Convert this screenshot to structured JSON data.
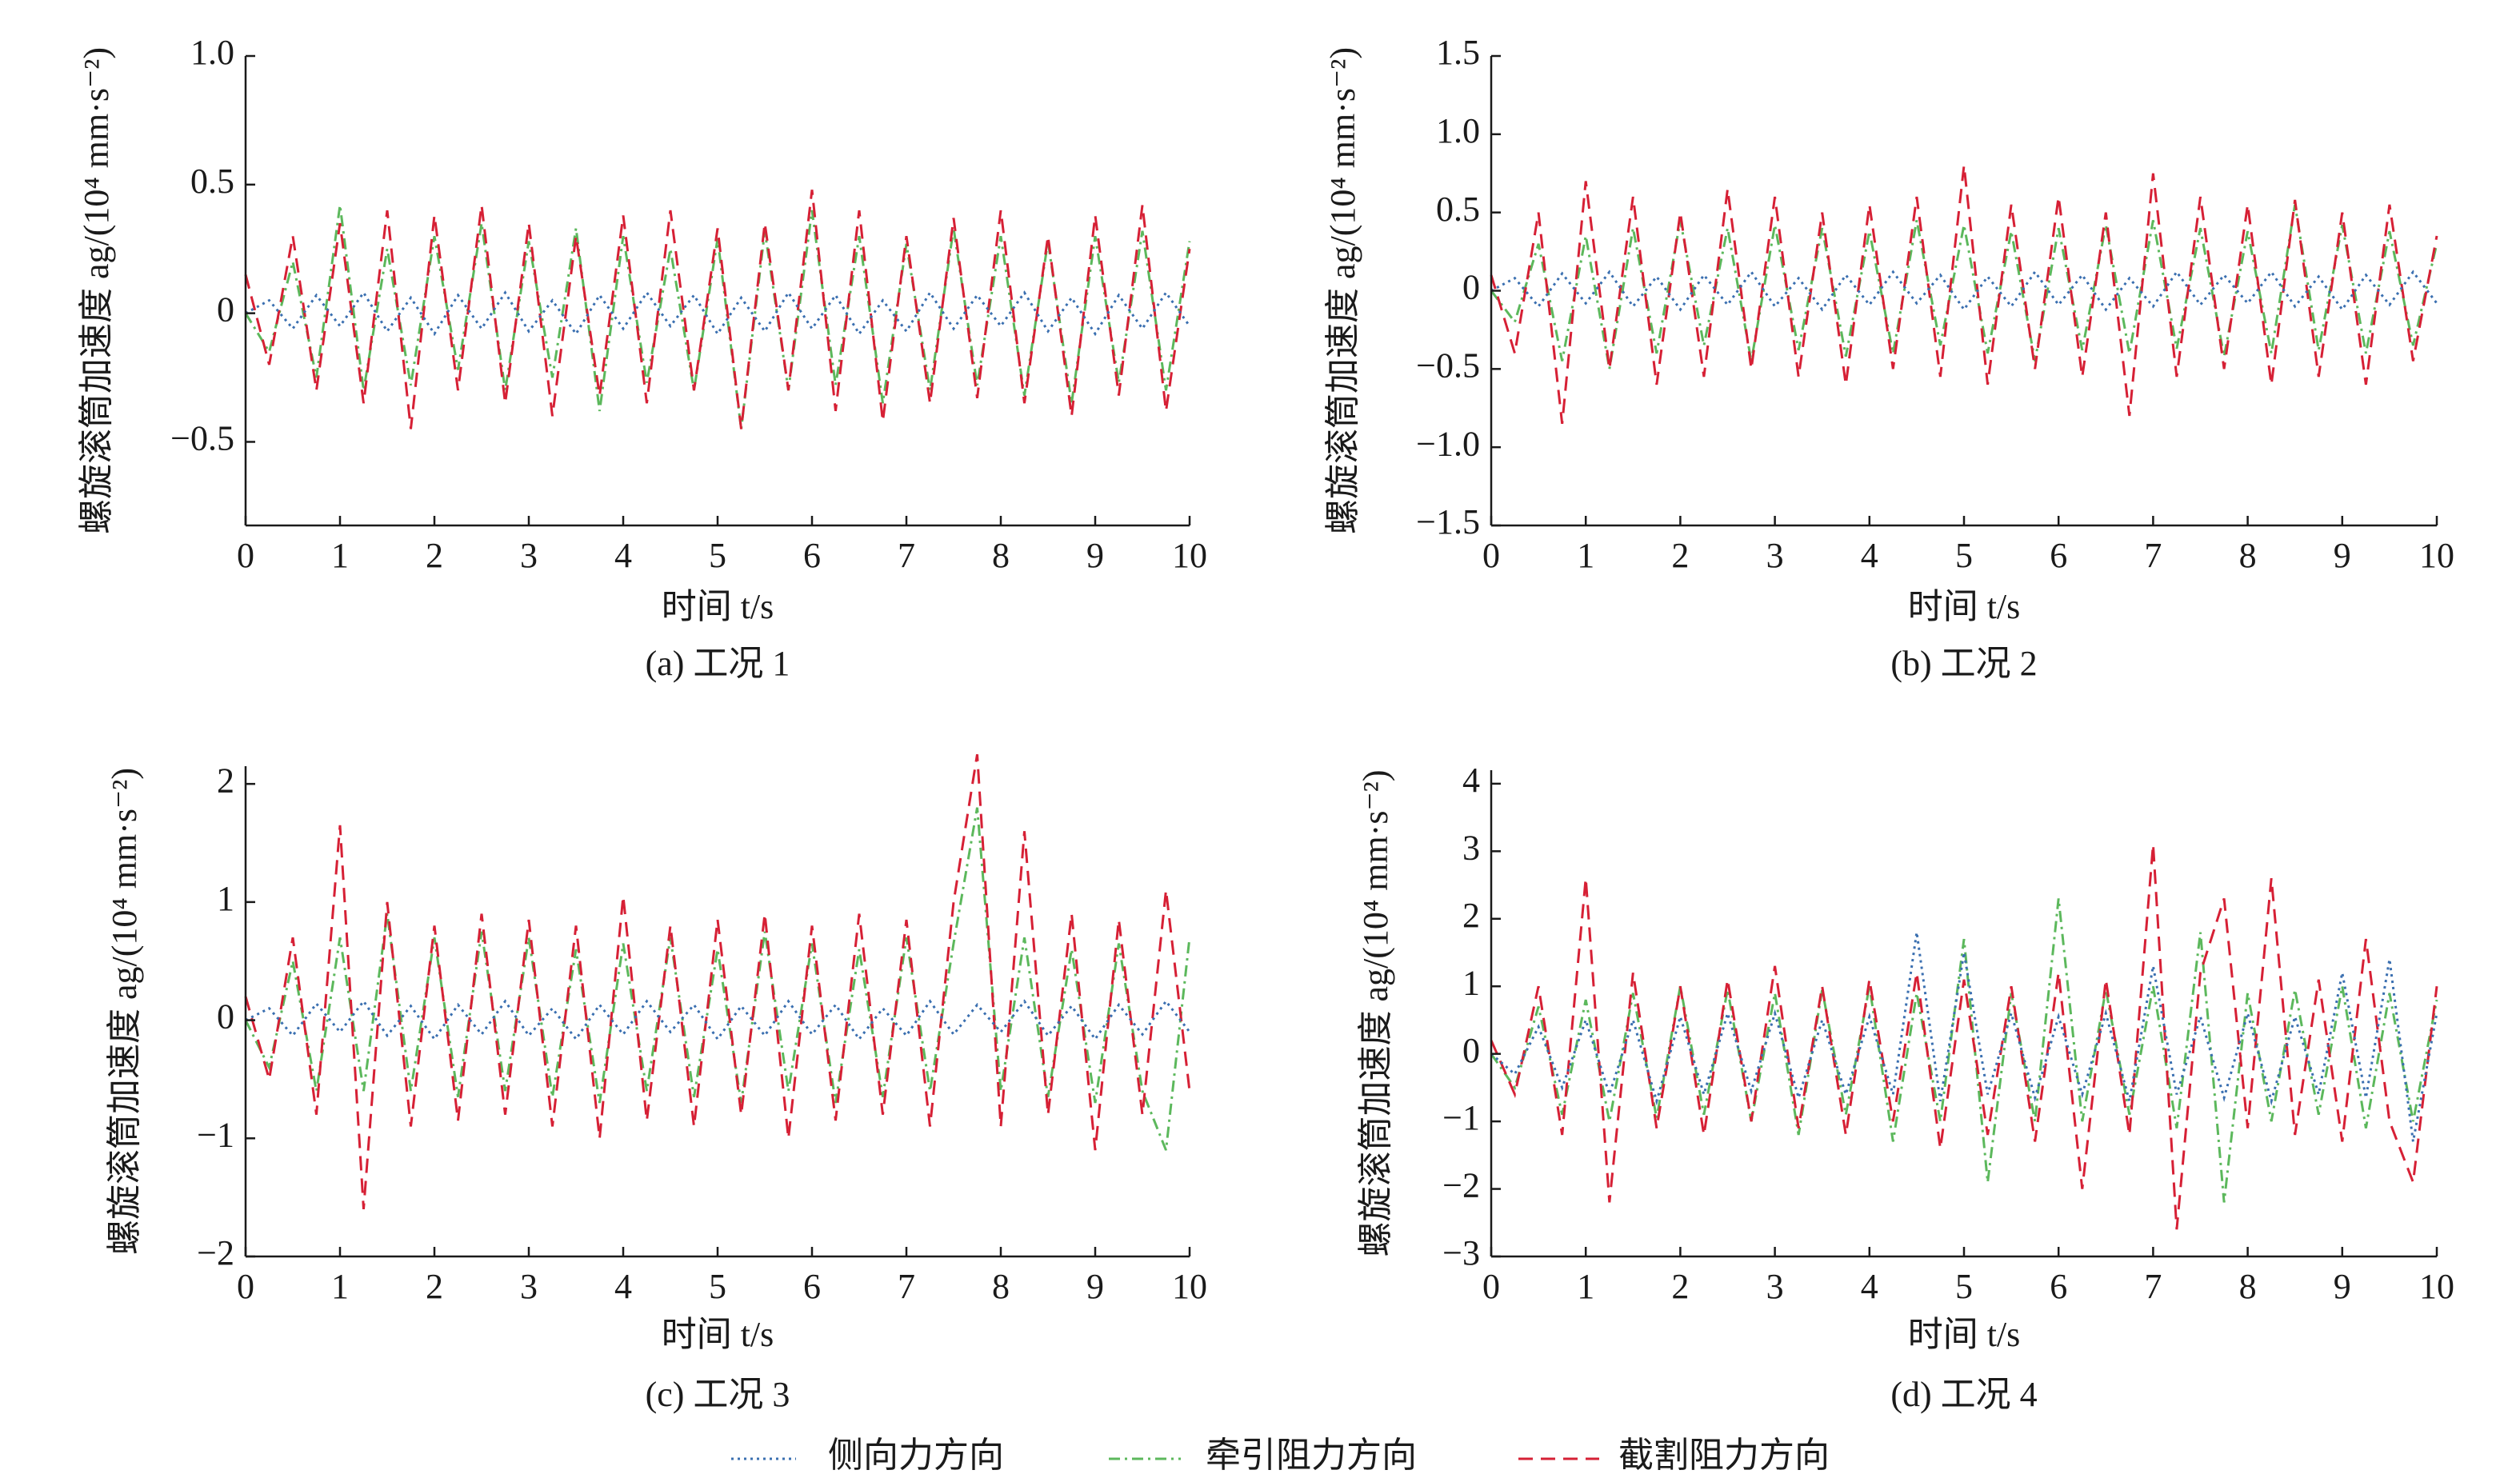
{
  "chart_data": [
    {
      "type": "line",
      "title": "(a) 工况 1",
      "xlabel": "时间 t/s",
      "ylabel": "螺旋滚筒加速度 ag/(10⁴ mm·s⁻²)",
      "x": [
        0,
        0.25,
        0.5,
        0.75,
        1,
        1.25,
        1.5,
        1.75,
        2,
        2.25,
        2.5,
        2.75,
        3,
        3.25,
        3.5,
        3.75,
        4,
        4.25,
        4.5,
        4.75,
        5,
        5.25,
        5.5,
        5.75,
        6,
        6.25,
        6.5,
        6.75,
        7,
        7.25,
        7.5,
        7.75,
        8,
        8.25,
        8.5,
        8.75,
        9,
        9.25,
        9.5,
        9.75,
        10
      ],
      "xlim": [
        0,
        10
      ],
      "xticks": [
        0,
        1,
        2,
        3,
        4,
        5,
        6,
        7,
        8,
        9,
        10
      ],
      "ylim": [
        -0.825,
        1
      ],
      "yticks": [
        {
          "value": -0.5,
          "label": "−0.5"
        },
        0,
        0.5,
        {
          "value": 1,
          "label": "1.0"
        }
      ],
      "series": [
        {
          "name": "侧向力方向",
          "color": "#3a6fb0",
          "dash": "dotted",
          "values": [
            0,
            0.05,
            -0.06,
            0.07,
            -0.05,
            0.08,
            -0.07,
            0.06,
            -0.08,
            0.07,
            -0.06,
            0.08,
            -0.07,
            0.05,
            -0.08,
            0.07,
            -0.06,
            0.08,
            -0.05,
            0.07,
            -0.08,
            0.06,
            -0.07,
            0.08,
            -0.06,
            0.07,
            -0.08,
            0.05,
            -0.07,
            0.08,
            -0.06,
            0.07,
            -0.05,
            0.08,
            -0.07,
            0.06,
            -0.08,
            0.07,
            -0.06,
            0.08,
            -0.05
          ]
        },
        {
          "name": "牵引阻力方向",
          "color": "#5cb85c",
          "dash": "dashdot",
          "values": [
            0,
            -0.15,
            0.2,
            -0.25,
            0.42,
            -0.3,
            0.25,
            -0.28,
            0.3,
            -0.22,
            0.35,
            -0.3,
            0.28,
            -0.25,
            0.33,
            -0.38,
            0.3,
            -0.27,
            0.25,
            -0.3,
            0.29,
            -0.45,
            0.32,
            -0.3,
            0.4,
            -0.28,
            0.3,
            -0.35,
            0.27,
            -0.3,
            0.33,
            -0.28,
            0.3,
            -0.32,
            0.28,
            -0.35,
            0.3,
            -0.27,
            0.32,
            -0.3,
            0.28
          ]
        },
        {
          "name": "截割阻力方向",
          "color": "#d62035",
          "dash": "dashed",
          "values": [
            0.15,
            -0.2,
            0.3,
            -0.3,
            0.35,
            -0.35,
            0.4,
            -0.45,
            0.38,
            -0.3,
            0.42,
            -0.35,
            0.35,
            -0.4,
            0.3,
            -0.32,
            0.38,
            -0.35,
            0.4,
            -0.3,
            0.33,
            -0.45,
            0.35,
            -0.3,
            0.48,
            -0.38,
            0.4,
            -0.42,
            0.3,
            -0.35,
            0.37,
            -0.33,
            0.4,
            -0.35,
            0.3,
            -0.4,
            0.38,
            -0.32,
            0.42,
            -0.38,
            0.25
          ]
        }
      ]
    },
    {
      "type": "line",
      "title": "(b) 工况 2",
      "xlabel": "时间 t/s",
      "ylabel": "螺旋滚筒加速度 ag/(10⁴ mm·s⁻²)",
      "x": [
        0,
        0.25,
        0.5,
        0.75,
        1,
        1.25,
        1.5,
        1.75,
        2,
        2.25,
        2.5,
        2.75,
        3,
        3.25,
        3.5,
        3.75,
        4,
        4.25,
        4.5,
        4.75,
        5,
        5.25,
        5.5,
        5.75,
        6,
        6.25,
        6.5,
        6.75,
        7,
        7.25,
        7.5,
        7.75,
        8,
        8.25,
        8.5,
        8.75,
        9,
        9.25,
        9.5,
        9.75,
        10
      ],
      "xlim": [
        0,
        10
      ],
      "xticks": [
        0,
        1,
        2,
        3,
        4,
        5,
        6,
        7,
        8,
        9,
        10
      ],
      "ylim": [
        -1.5,
        1.5
      ],
      "yticks": [
        {
          "value": -1.5,
          "label": "−1.5"
        },
        {
          "value": -1,
          "label": "−1.0"
        },
        {
          "value": -0.5,
          "label": "−0.5"
        },
        0,
        0.5,
        {
          "value": 1,
          "label": "1.0"
        },
        1.5
      ],
      "series": [
        {
          "name": "侧向力方向",
          "color": "#3a6fb0",
          "dash": "dotted",
          "values": [
            0,
            0.08,
            -0.1,
            0.11,
            -0.08,
            0.12,
            -0.1,
            0.09,
            -0.12,
            0.1,
            -0.09,
            0.12,
            -0.1,
            0.08,
            -0.12,
            0.1,
            -0.09,
            0.12,
            -0.08,
            0.1,
            -0.12,
            0.09,
            -0.1,
            0.12,
            -0.09,
            0.1,
            -0.12,
            0.08,
            -0.1,
            0.12,
            -0.09,
            0.1,
            -0.08,
            0.12,
            -0.1,
            0.09,
            -0.12,
            0.1,
            -0.09,
            0.12,
            -0.08
          ]
        },
        {
          "name": "牵引阻力方向",
          "color": "#5cb85c",
          "dash": "dashdot",
          "values": [
            0,
            -0.2,
            0.3,
            -0.45,
            0.35,
            -0.5,
            0.4,
            -0.4,
            0.45,
            -0.35,
            0.4,
            -0.45,
            0.42,
            -0.38,
            0.4,
            -0.42,
            0.38,
            -0.4,
            0.45,
            -0.35,
            0.42,
            -0.4,
            0.38,
            -0.45,
            0.4,
            -0.38,
            0.42,
            -0.4,
            0.45,
            -0.37,
            0.4,
            -0.42,
            0.38,
            -0.4,
            0.55,
            -0.38,
            0.42,
            -0.4,
            0.38,
            -0.35,
            0.3
          ]
        },
        {
          "name": "截割阻力方向",
          "color": "#d62035",
          "dash": "dashed",
          "values": [
            0.1,
            -0.4,
            0.5,
            -0.85,
            0.7,
            -0.5,
            0.6,
            -0.6,
            0.5,
            -0.55,
            0.65,
            -0.5,
            0.6,
            -0.55,
            0.5,
            -0.6,
            0.55,
            -0.5,
            0.6,
            -0.55,
            0.8,
            -0.6,
            0.55,
            -0.5,
            0.6,
            -0.55,
            0.5,
            -0.8,
            0.75,
            -0.55,
            0.6,
            -0.5,
            0.55,
            -0.6,
            0.58,
            -0.55,
            0.5,
            -0.6,
            0.55,
            -0.45,
            0.35
          ]
        }
      ]
    },
    {
      "type": "line",
      "title": "(c) 工况 3",
      "xlabel": "时间 t/s",
      "ylabel": "螺旋滚筒加速度 ag/(10⁴ mm·s⁻²)",
      "x": [
        0,
        0.25,
        0.5,
        0.75,
        1,
        1.25,
        1.5,
        1.75,
        2,
        2.25,
        2.5,
        2.75,
        3,
        3.25,
        3.5,
        3.75,
        4,
        4.25,
        4.5,
        4.75,
        5,
        5.25,
        5.5,
        5.75,
        6,
        6.25,
        6.5,
        6.75,
        7,
        7.25,
        7.5,
        7.75,
        8,
        8.25,
        8.5,
        8.75,
        9,
        9.25,
        9.5,
        9.75,
        10
      ],
      "xlim": [
        0,
        10
      ],
      "xticks": [
        0,
        1,
        2,
        3,
        4,
        5,
        6,
        7,
        8,
        9,
        10
      ],
      "ylim": [
        -2,
        2.15
      ],
      "yticks": [
        {
          "value": -2,
          "label": "−2"
        },
        {
          "value": -1,
          "label": "−1"
        },
        0,
        1,
        2
      ],
      "series": [
        {
          "name": "侧向力方向",
          "color": "#3a6fb0",
          "dash": "dotted",
          "values": [
            0,
            0.1,
            -0.13,
            0.14,
            -0.1,
            0.16,
            -0.13,
            0.12,
            -0.16,
            0.13,
            -0.12,
            0.16,
            -0.13,
            0.1,
            -0.16,
            0.13,
            -0.12,
            0.16,
            -0.1,
            0.13,
            -0.16,
            0.12,
            -0.13,
            0.16,
            -0.12,
            0.13,
            -0.16,
            0.1,
            -0.13,
            0.16,
            -0.12,
            0.13,
            -0.1,
            0.16,
            -0.13,
            0.12,
            -0.16,
            0.13,
            -0.12,
            0.16,
            -0.1
          ]
        },
        {
          "name": "牵引阻力方向",
          "color": "#5cb85c",
          "dash": "dashdot",
          "values": [
            0,
            -0.4,
            0.5,
            -0.6,
            0.7,
            -0.6,
            0.9,
            -0.6,
            0.7,
            -0.65,
            0.75,
            -0.6,
            0.7,
            -0.65,
            0.6,
            -0.7,
            0.65,
            -0.6,
            0.7,
            -0.65,
            0.6,
            -0.7,
            0.75,
            -0.6,
            0.65,
            -0.7,
            0.6,
            -0.65,
            0.7,
            -0.6,
            0.65,
            1.8,
            -0.6,
            0.7,
            -0.65,
            0.6,
            -0.7,
            0.65,
            -0.6,
            -1.1,
            0.7
          ]
        },
        {
          "name": "截割阻力方向",
          "color": "#d62035",
          "dash": "dashed",
          "values": [
            0.2,
            -0.5,
            0.7,
            -0.8,
            1.65,
            -1.6,
            1,
            -0.9,
            0.8,
            -0.85,
            0.9,
            -0.8,
            0.85,
            -0.9,
            0.8,
            -1,
            1.05,
            -0.85,
            0.8,
            -0.9,
            0.85,
            -0.8,
            0.9,
            -1,
            0.8,
            -0.85,
            0.9,
            -0.8,
            0.85,
            -0.9,
            1,
            2.25,
            -0.9,
            1.6,
            -0.8,
            0.9,
            -1.1,
            0.85,
            -0.8,
            1.1,
            -0.6
          ]
        }
      ]
    },
    {
      "type": "line",
      "title": "(d) 工况 4",
      "xlabel": "时间 t/s",
      "ylabel": "螺旋滚筒加速度 ag/(10⁴ mm·s⁻²)",
      "x": [
        0,
        0.25,
        0.5,
        0.75,
        1,
        1.25,
        1.5,
        1.75,
        2,
        2.25,
        2.5,
        2.75,
        3,
        3.25,
        3.5,
        3.75,
        4,
        4.25,
        4.5,
        4.75,
        5,
        5.25,
        5.5,
        5.75,
        6,
        6.25,
        6.5,
        6.75,
        7,
        7.25,
        7.5,
        7.75,
        8,
        8.25,
        8.5,
        8.75,
        9,
        9.25,
        9.5,
        9.75,
        10
      ],
      "xlim": [
        0,
        10
      ],
      "xticks": [
        0,
        1,
        2,
        3,
        4,
        5,
        6,
        7,
        8,
        9,
        10
      ],
      "ylim": [
        -3,
        4.2
      ],
      "yticks": [
        {
          "value": -3,
          "label": "−3"
        },
        {
          "value": -2,
          "label": "−2"
        },
        {
          "value": -1,
          "label": "−1"
        },
        0,
        1,
        2,
        3,
        4
      ],
      "series": [
        {
          "name": "侧向力方向",
          "color": "#3a6fb0",
          "dash": "dotted",
          "values": [
            0,
            -0.3,
            0.4,
            -0.5,
            0.5,
            -0.6,
            0.5,
            -0.7,
            0.55,
            -0.6,
            0.6,
            -0.55,
            0.6,
            -0.65,
            0.5,
            -0.6,
            0.55,
            -0.6,
            1.8,
            -0.7,
            1.5,
            -0.6,
            0.6,
            -0.65,
            0.55,
            -0.6,
            0.6,
            -0.7,
            1.3,
            -0.6,
            0.55,
            -0.65,
            0.6,
            -0.7,
            0.55,
            -0.6,
            1.2,
            -0.65,
            1.4,
            -1.3,
            0.6
          ]
        },
        {
          "name": "牵引阻力方向",
          "color": "#5cb85c",
          "dash": "dashdot",
          "values": [
            0,
            -0.5,
            0.7,
            -0.9,
            0.8,
            -1,
            0.9,
            -0.95,
            1,
            -0.9,
            0.95,
            -1,
            0.9,
            -1.2,
            0.95,
            -0.9,
            1,
            -1.3,
            0.9,
            -1,
            1.7,
            -1.9,
            0.9,
            -1,
            2.3,
            -1,
            0.95,
            -0.9,
            1,
            -1.1,
            1.8,
            -2.2,
            0.9,
            -1,
            0.95,
            -0.9,
            1,
            -1.1,
            0.9,
            -1,
            0.8
          ]
        },
        {
          "name": "截割阻力方向",
          "color": "#d62035",
          "dash": "dashed",
          "values": [
            0.2,
            -0.6,
            1,
            -1.2,
            2.6,
            -2.2,
            1.2,
            -1.1,
            1,
            -1.2,
            1.1,
            -1,
            1.3,
            -1.1,
            1,
            -1.2,
            1.1,
            -1,
            1.2,
            -1.4,
            1.1,
            -1.2,
            1,
            -1.3,
            1.2,
            -2,
            1.1,
            -1.2,
            3.1,
            -2.6,
            1.2,
            2.3,
            -1.1,
            2.6,
            -1.2,
            1.1,
            -1.3,
            1.7,
            -1,
            -1.9,
            1
          ]
        }
      ]
    }
  ]
}
